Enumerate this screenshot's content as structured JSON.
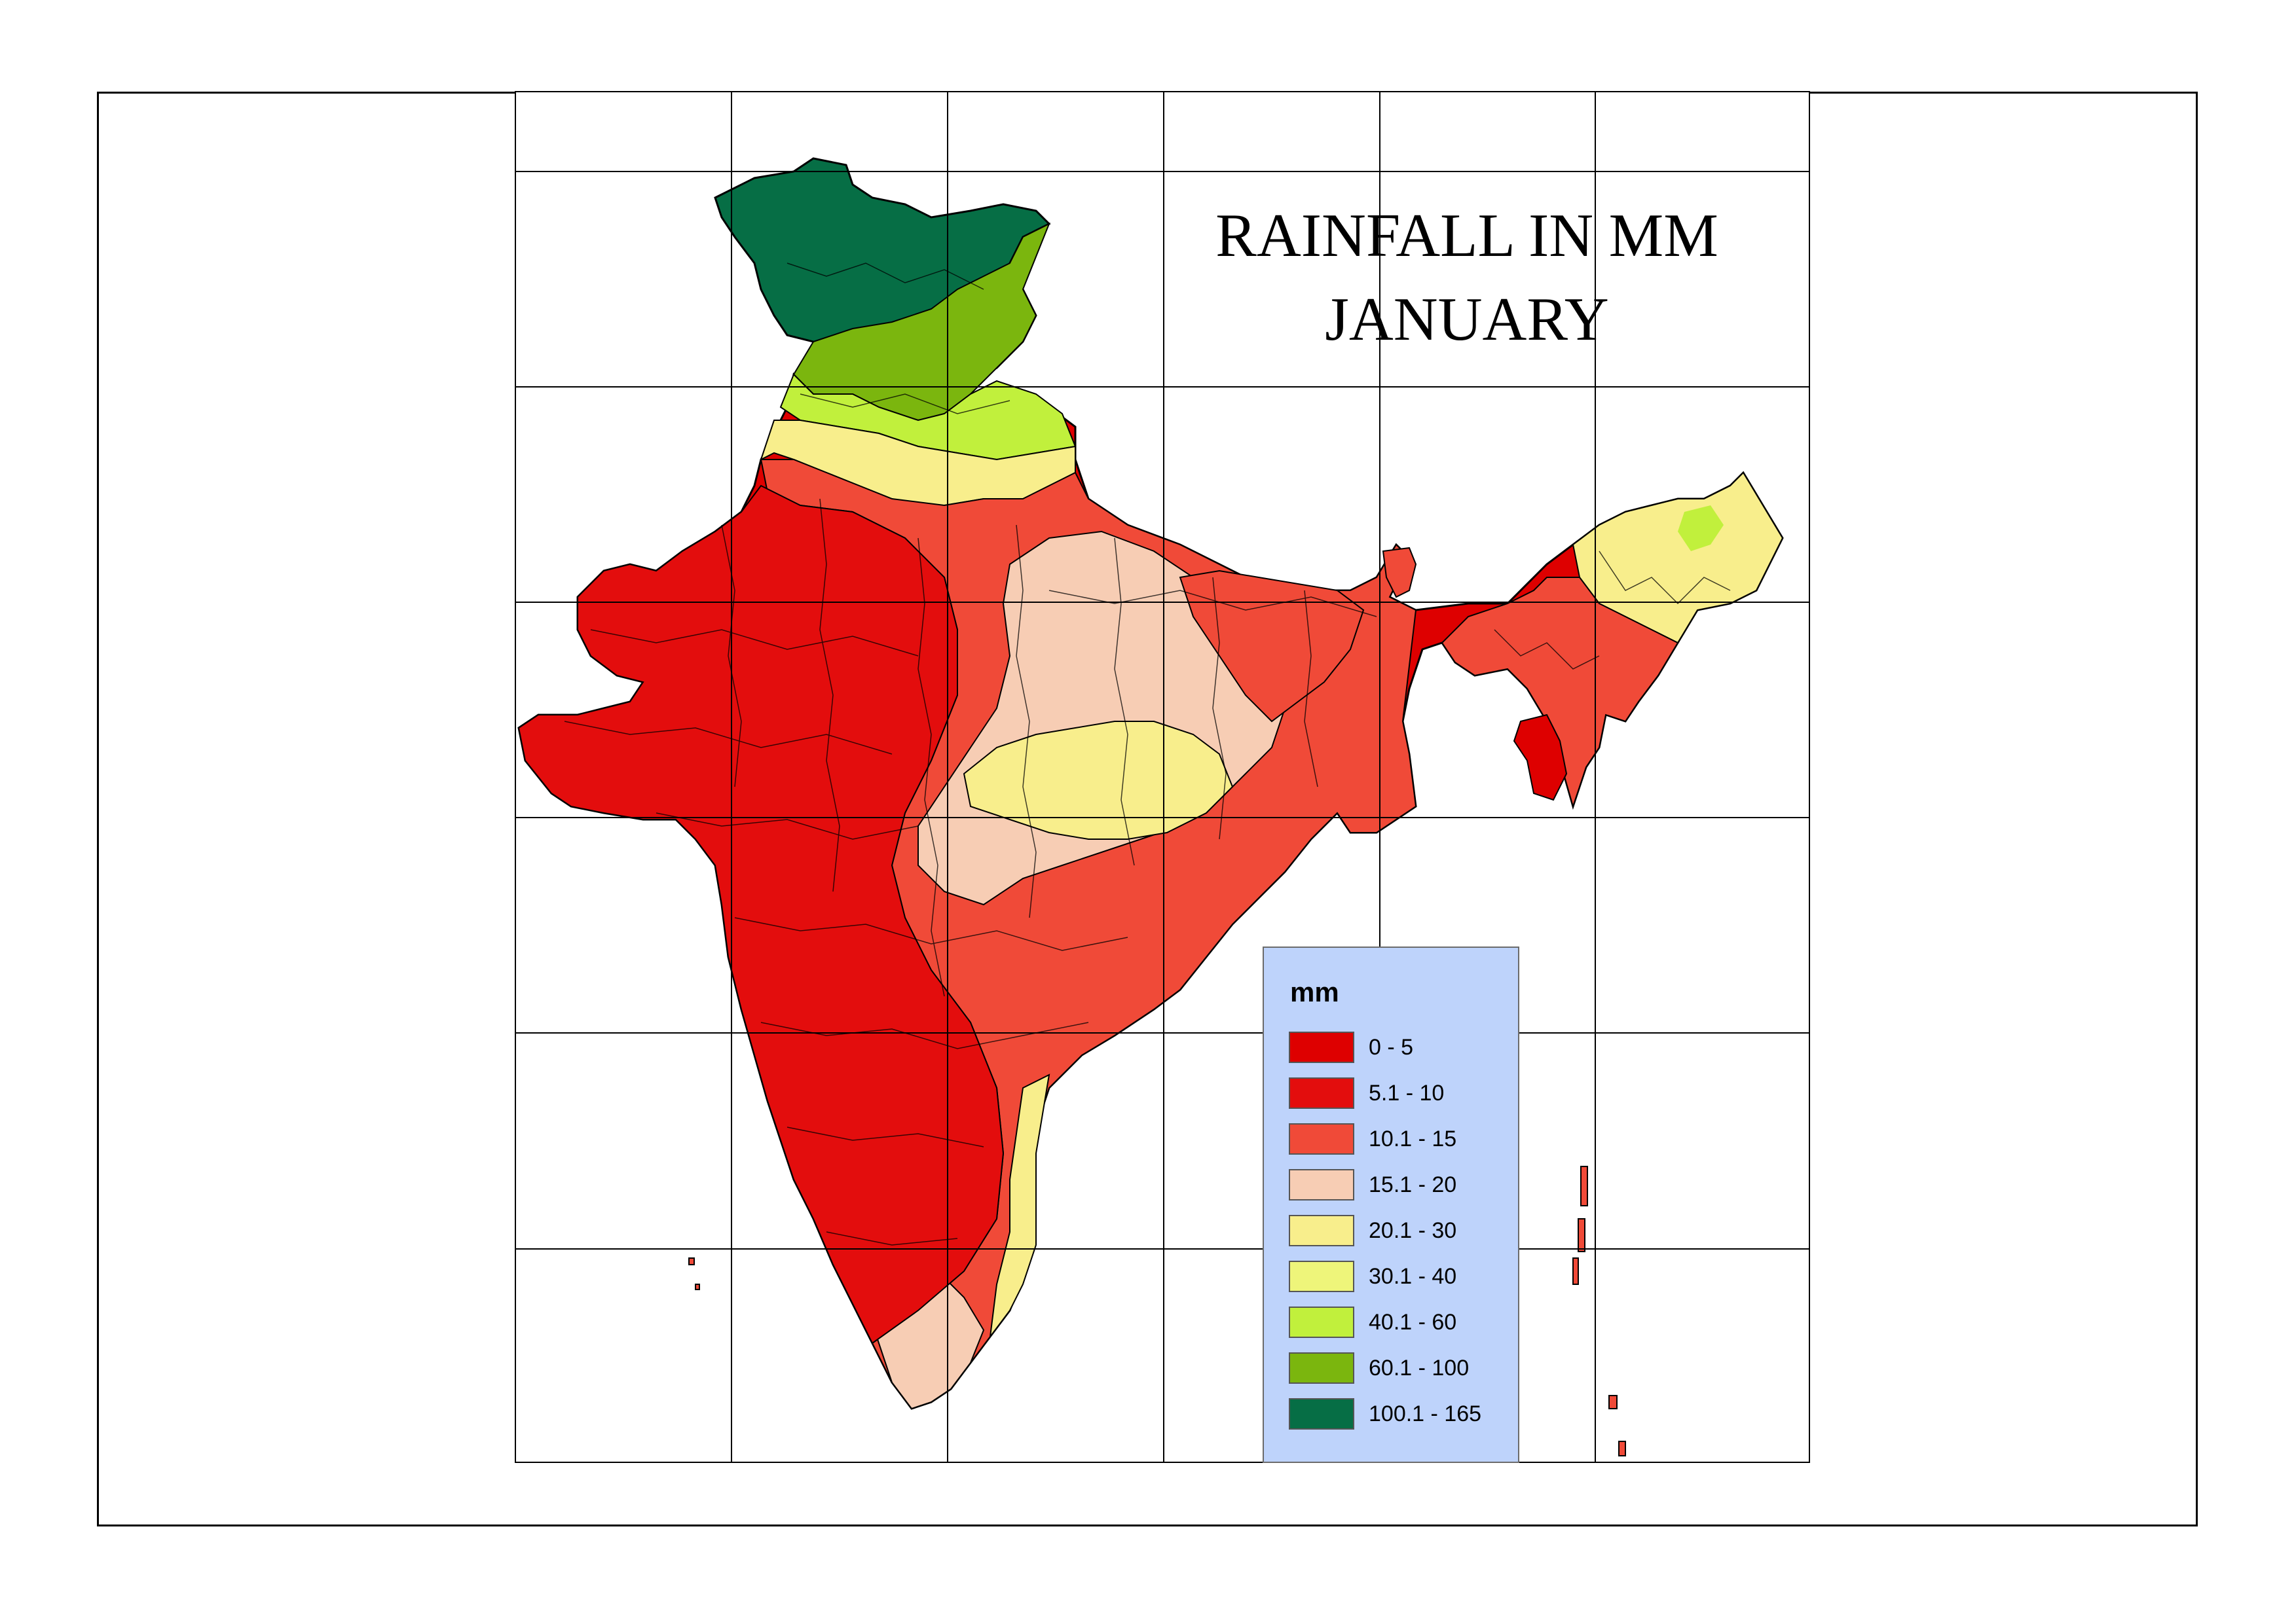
{
  "title": {
    "line1": "RAINFALL IN MM",
    "line2": "JANUARY"
  },
  "legend": {
    "title": "mm",
    "classes": [
      {
        "label": "0 - 5",
        "color": "#de0000"
      },
      {
        "label": "5.1 - 10",
        "color": "#e30d0d"
      },
      {
        "label": "10.1 - 15",
        "color": "#f04a38"
      },
      {
        "label": "15.1 - 20",
        "color": "#f7cdb4"
      },
      {
        "label": "20.1 - 30",
        "color": "#f8ee8c"
      },
      {
        "label": "30.1 - 40",
        "color": "#eef57a"
      },
      {
        "label": "40.1 - 60",
        "color": "#c1f03c"
      },
      {
        "label": "60.1 - 100",
        "color": "#7bb60e"
      },
      {
        "label": "100.1 - 165",
        "color": "#066e45"
      }
    ]
  }
}
